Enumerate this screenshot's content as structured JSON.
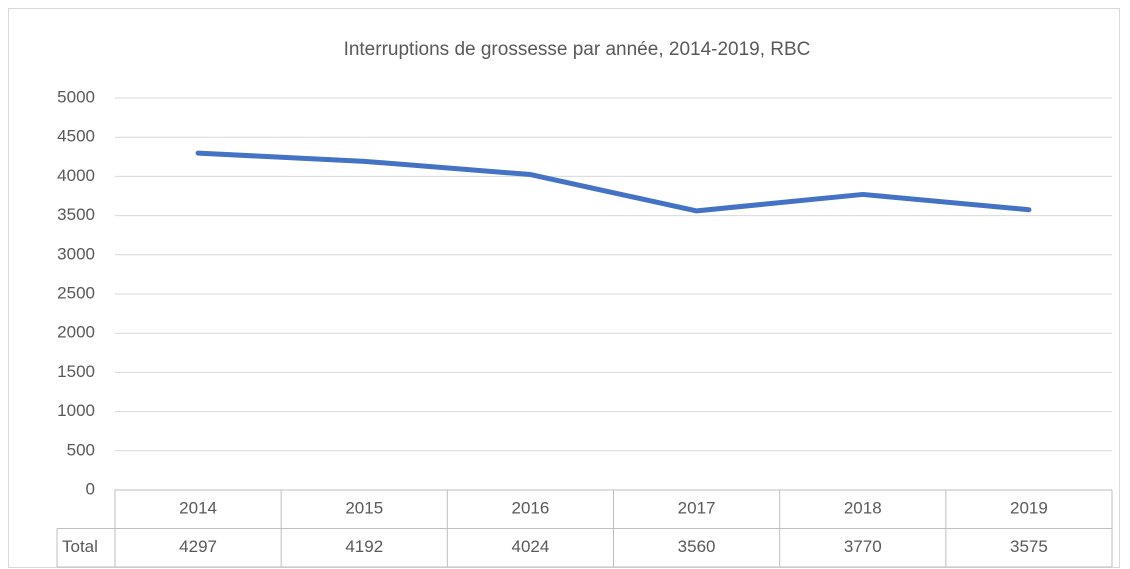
{
  "chart_data": {
    "type": "line",
    "title": "Interruptions de grossesse par année, 2014-2019, RBC",
    "categories": [
      "2014",
      "2015",
      "2016",
      "2017",
      "2018",
      "2019"
    ],
    "series": [
      {
        "name": "Total",
        "color": "#4472c4",
        "values": [
          4297,
          4192,
          4024,
          3560,
          3770,
          3575
        ]
      }
    ],
    "ylim": [
      0,
      5000
    ],
    "yticks": [
      0,
      500,
      1000,
      1500,
      2000,
      2500,
      3000,
      3500,
      4000,
      4500,
      5000
    ],
    "grid": true,
    "data_table": true
  }
}
